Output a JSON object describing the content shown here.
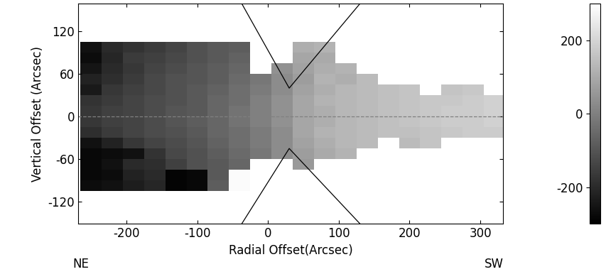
{
  "chart_data": {
    "type": "heatmap",
    "x_label": "Radial Offset(Arcsec)",
    "y_label": "Vertical Offset (Arcsec)",
    "annotations": [
      "NE",
      "SW"
    ],
    "xlim": [
      -268,
      332
    ],
    "ylim": [
      -151,
      159
    ],
    "xticks": [
      -200,
      -100,
      0,
      100,
      200,
      300
    ],
    "yticks": [
      -120,
      -60,
      0,
      60,
      120
    ],
    "reference_line_y": 0,
    "x_edges": [
      -265,
      -235,
      -205,
      -175,
      -145,
      -115,
      -85,
      -55,
      -25,
      5,
      35,
      65,
      95,
      125,
      155,
      185,
      215,
      245,
      275,
      305,
      335
    ],
    "y_edges": [
      105,
      90,
      75,
      60,
      45,
      30,
      15,
      0,
      -15,
      -30,
      -45,
      -60,
      -75,
      -90,
      -105
    ],
    "cells": [
      [
        -260,
        -200,
        -180,
        -160,
        -140,
        -110,
        -90,
        -80,
        null,
        null,
        110,
        120,
        null,
        null,
        null,
        null,
        null,
        null,
        null,
        null
      ],
      [
        -270,
        -210,
        -160,
        -150,
        -130,
        -110,
        -90,
        -70,
        null,
        null,
        90,
        100,
        null,
        null,
        null,
        null,
        null,
        null,
        null,
        null
      ],
      [
        -250,
        -200,
        -170,
        -140,
        -120,
        -100,
        -80,
        -60,
        null,
        40,
        80,
        110,
        120,
        null,
        null,
        null,
        null,
        null,
        null,
        null
      ],
      [
        -220,
        -190,
        -160,
        -130,
        -110,
        -100,
        -80,
        -50,
        -20,
        30,
        70,
        120,
        110,
        140,
        null,
        null,
        null,
        null,
        null,
        null
      ],
      [
        -240,
        -170,
        -150,
        -130,
        -110,
        -90,
        -70,
        -40,
        -10,
        30,
        80,
        110,
        130,
        140,
        150,
        160,
        null,
        160,
        170,
        null
      ],
      [
        -180,
        -160,
        -140,
        -120,
        -110,
        -90,
        -60,
        -40,
        0,
        40,
        90,
        120,
        130,
        140,
        150,
        160,
        170,
        170,
        180,
        190
      ],
      [
        -170,
        -150,
        -140,
        -120,
        -100,
        -90,
        -60,
        -30,
        0,
        40,
        90,
        110,
        130,
        140,
        150,
        160,
        170,
        180,
        180,
        190
      ],
      [
        -170,
        -150,
        -140,
        -120,
        -100,
        -80,
        -60,
        -30,
        0,
        40,
        90,
        110,
        130,
        140,
        150,
        160,
        170,
        180,
        180,
        190
      ],
      [
        -190,
        -160,
        -140,
        -120,
        -110,
        -90,
        -60,
        -40,
        -10,
        30,
        90,
        120,
        130,
        140,
        150,
        150,
        160,
        170,
        180,
        180
      ],
      [
        -260,
        -220,
        -170,
        -140,
        -120,
        -100,
        -70,
        -40,
        -10,
        30,
        80,
        110,
        130,
        140,
        null,
        140,
        160,
        null,
        null,
        null
      ],
      [
        -280,
        -270,
        -260,
        -180,
        -130,
        -110,
        -80,
        -50,
        -20,
        30,
        70,
        100,
        120,
        null,
        null,
        null,
        null,
        null,
        null,
        null
      ],
      [
        -280,
        -260,
        -200,
        -190,
        -150,
        -110,
        -90,
        -60,
        null,
        null,
        60,
        null,
        null,
        null,
        null,
        null,
        null,
        null,
        null,
        null
      ],
      [
        -280,
        -270,
        -220,
        -200,
        -290,
        -280,
        -90,
        290,
        null,
        null,
        null,
        null,
        null,
        null,
        null,
        null,
        null,
        null,
        null,
        null
      ],
      [
        -270,
        -260,
        -230,
        -210,
        -290,
        -280,
        -80,
        290,
        null,
        null,
        null,
        null,
        null,
        null,
        null,
        null,
        null,
        null,
        null,
        null
      ]
    ],
    "colorbar": {
      "range": [
        -300,
        300
      ],
      "ticks": [
        -200,
        0,
        200
      ]
    },
    "outlines": [
      {
        "x": [
          -37,
          30,
          130
        ],
        "y": [
          159,
          40,
          159
        ]
      },
      {
        "x": [
          -37,
          30,
          130
        ],
        "y": [
          -151,
          -45,
          -151
        ]
      }
    ]
  }
}
